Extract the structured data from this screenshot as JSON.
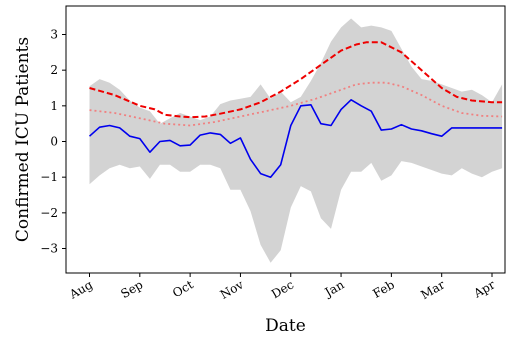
{
  "chart_data": {
    "type": "line",
    "xlabel": "Date",
    "ylabel": "Confirmed ICU Patients",
    "x_ticks": [
      "Aug",
      "Sep",
      "Oct",
      "Nov",
      "Dec",
      "Jan",
      "Feb",
      "Mar",
      "Apr"
    ],
    "y_ticks": [
      3,
      2,
      1,
      0,
      -1,
      -2,
      -3
    ],
    "xlim": [
      0,
      8.4
    ],
    "ylim": [
      -3.95,
      3.8
    ],
    "grid": false,
    "series": [
      {
        "kind": "band",
        "color": "#d3d3d3",
        "x": [
          0.0,
          0.2,
          0.4,
          0.6,
          0.8,
          1.0,
          1.2,
          1.4,
          1.6,
          1.8,
          2.0,
          2.2,
          2.4,
          2.6,
          2.8,
          3.0,
          3.2,
          3.4,
          3.6,
          3.8,
          4.0,
          4.2,
          4.4,
          4.6,
          4.8,
          5.0,
          5.2,
          5.4,
          5.6,
          5.8,
          6.0,
          6.2,
          6.4,
          6.6,
          6.8,
          7.0,
          7.2,
          7.4,
          7.6,
          7.8,
          8.0,
          8.2
        ],
        "upper": [
          1.55,
          1.75,
          1.65,
          1.45,
          1.15,
          0.95,
          0.85,
          0.5,
          0.65,
          0.8,
          0.7,
          0.6,
          0.7,
          1.05,
          1.15,
          1.2,
          1.25,
          1.6,
          1.2,
          1.4,
          1.1,
          1.25,
          1.7,
          2.2,
          2.8,
          3.2,
          3.45,
          3.2,
          3.25,
          3.2,
          3.1,
          2.6,
          2.1,
          1.75,
          1.7,
          1.6,
          1.5,
          1.4,
          1.45,
          1.3,
          1.1,
          1.6
        ],
        "lower": [
          -1.2,
          -0.95,
          -0.75,
          -0.65,
          -0.75,
          -0.7,
          -1.05,
          -0.65,
          -0.65,
          -0.85,
          -0.85,
          -0.65,
          -0.65,
          -0.75,
          -1.35,
          -1.35,
          -1.95,
          -2.9,
          -3.4,
          -3.05,
          -1.85,
          -1.25,
          -1.4,
          -2.15,
          -2.45,
          -1.35,
          -0.85,
          -0.85,
          -0.6,
          -1.1,
          -0.95,
          -0.55,
          -0.6,
          -0.7,
          -0.8,
          -0.9,
          -0.95,
          -0.75,
          -0.9,
          -1.0,
          -0.85,
          -0.75
        ]
      },
      {
        "kind": "line",
        "style": "solid",
        "color": "#0000ee",
        "x": [
          0.0,
          0.2,
          0.4,
          0.6,
          0.8,
          1.0,
          1.2,
          1.4,
          1.6,
          1.8,
          2.0,
          2.2,
          2.4,
          2.6,
          2.8,
          3.0,
          3.2,
          3.4,
          3.6,
          3.8,
          4.0,
          4.2,
          4.4,
          4.6,
          4.8,
          5.0,
          5.2,
          5.4,
          5.6,
          5.8,
          6.0,
          6.2,
          6.4,
          6.6,
          6.8,
          7.0,
          7.2,
          7.4,
          7.6,
          7.8,
          8.0,
          8.2
        ],
        "y": [
          0.15,
          0.4,
          0.45,
          0.38,
          0.15,
          0.08,
          -0.3,
          0.0,
          0.03,
          -0.12,
          -0.1,
          0.18,
          0.24,
          0.2,
          -0.05,
          0.1,
          -0.5,
          -0.9,
          -1.0,
          -0.65,
          0.45,
          1.0,
          1.03,
          0.5,
          0.45,
          0.9,
          1.17,
          1.0,
          0.85,
          0.32,
          0.35,
          0.47,
          0.35,
          0.3,
          0.22,
          0.15,
          0.38,
          0.38,
          0.38,
          0.38,
          0.38,
          0.38
        ]
      },
      {
        "kind": "line",
        "style": "dashed",
        "color": "#ee0000",
        "x": [
          0.0,
          0.5,
          1.0,
          1.3,
          1.5,
          1.8,
          2.0,
          2.3,
          2.6,
          3.0,
          3.4,
          3.8,
          4.2,
          4.6,
          5.0,
          5.3,
          5.5,
          5.8,
          6.2,
          6.6,
          7.0,
          7.3,
          7.6,
          8.0,
          8.2
        ],
        "y": [
          1.5,
          1.3,
          1.0,
          0.9,
          0.75,
          0.7,
          0.68,
          0.7,
          0.78,
          0.9,
          1.1,
          1.4,
          1.75,
          2.15,
          2.55,
          2.72,
          2.78,
          2.78,
          2.5,
          2.0,
          1.5,
          1.25,
          1.15,
          1.1,
          1.1
        ]
      },
      {
        "kind": "line",
        "style": "dotted",
        "color": "#f08080",
        "x": [
          0.0,
          0.5,
          1.0,
          1.5,
          2.0,
          2.5,
          3.0,
          3.5,
          4.0,
          4.5,
          5.0,
          5.3,
          5.6,
          5.9,
          6.2,
          6.6,
          7.0,
          7.4,
          7.8,
          8.2
        ],
        "y": [
          0.88,
          0.8,
          0.65,
          0.5,
          0.45,
          0.55,
          0.7,
          0.85,
          1.0,
          1.2,
          1.45,
          1.6,
          1.65,
          1.65,
          1.55,
          1.3,
          1.0,
          0.8,
          0.72,
          0.7
        ]
      }
    ]
  }
}
